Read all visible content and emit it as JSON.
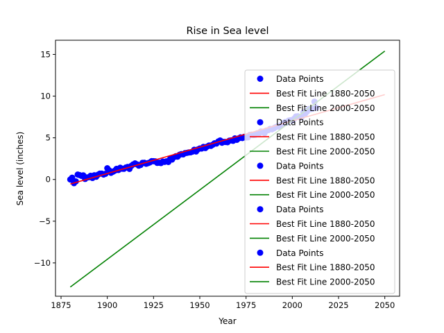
{
  "chart_data": {
    "type": "scatter",
    "title": "Rise in Sea level",
    "xlabel": "Year",
    "ylabel": "Sea level (inches)",
    "xlim": [
      1872,
      2058
    ],
    "ylim": [
      -14.0,
      16.7
    ],
    "xticks": [
      1875,
      1900,
      1925,
      1950,
      1975,
      2000,
      2025,
      2050
    ],
    "yticks": [
      -10,
      -5,
      0,
      5,
      10,
      15
    ],
    "grid": false,
    "legend_position": "right",
    "legend": [
      {
        "label": "Data Points",
        "kind": "marker",
        "color": "#0000ff"
      },
      {
        "label": "Best Fit Line 1880-2050",
        "kind": "line",
        "color": "#ff0000"
      },
      {
        "label": "Best Fit Line 2000-2050",
        "kind": "line",
        "color": "#008000"
      },
      {
        "label": "Data Points",
        "kind": "marker",
        "color": "#0000ff"
      },
      {
        "label": "Best Fit Line 1880-2050",
        "kind": "line",
        "color": "#ff0000"
      },
      {
        "label": "Best Fit Line 2000-2050",
        "kind": "line",
        "color": "#008000"
      },
      {
        "label": "Data Points",
        "kind": "marker",
        "color": "#0000ff"
      },
      {
        "label": "Best Fit Line 1880-2050",
        "kind": "line",
        "color": "#ff0000"
      },
      {
        "label": "Best Fit Line 2000-2050",
        "kind": "line",
        "color": "#008000"
      },
      {
        "label": "Data Points",
        "kind": "marker",
        "color": "#0000ff"
      },
      {
        "label": "Best Fit Line 1880-2050",
        "kind": "line",
        "color": "#ff0000"
      },
      {
        "label": "Best Fit Line 2000-2050",
        "kind": "line",
        "color": "#008000"
      },
      {
        "label": "Data Points",
        "kind": "marker",
        "color": "#0000ff"
      },
      {
        "label": "Best Fit Line 1880-2050",
        "kind": "line",
        "color": "#ff0000"
      },
      {
        "label": "Best Fit Line 2000-2050",
        "kind": "line",
        "color": "#008000"
      }
    ],
    "scatter": {
      "name": "Data Points",
      "color": "#0000ff",
      "x": [
        1880,
        1881,
        1882,
        1883,
        1884,
        1885,
        1886,
        1887,
        1888,
        1889,
        1890,
        1891,
        1892,
        1893,
        1894,
        1895,
        1896,
        1897,
        1898,
        1899,
        1900,
        1901,
        1902,
        1903,
        1904,
        1905,
        1906,
        1907,
        1908,
        1909,
        1910,
        1911,
        1912,
        1913,
        1914,
        1915,
        1916,
        1917,
        1918,
        1919,
        1920,
        1921,
        1922,
        1923,
        1924,
        1925,
        1926,
        1927,
        1928,
        1929,
        1930,
        1931,
        1932,
        1933,
        1934,
        1935,
        1936,
        1937,
        1938,
        1939,
        1940,
        1941,
        1942,
        1943,
        1944,
        1945,
        1946,
        1947,
        1948,
        1949,
        1950,
        1951,
        1952,
        1953,
        1954,
        1955,
        1956,
        1957,
        1958,
        1959,
        1960,
        1961,
        1962,
        1963,
        1964,
        1965,
        1966,
        1967,
        1968,
        1969,
        1970,
        1971,
        1972,
        1973,
        1974,
        1975,
        1976,
        1977,
        1978,
        1979,
        1980,
        1981,
        1982,
        1983,
        1984,
        1985,
        1986,
        1987,
        1988,
        1989,
        1990,
        1991,
        1992,
        1993,
        1994,
        1995,
        1996,
        1997,
        1998,
        1999,
        2000,
        2001,
        2002,
        2003,
        2004,
        2005,
        2006,
        2007,
        2008,
        2009,
        2010,
        2011,
        2012,
        2013
      ],
      "y": [
        0.0,
        0.22,
        -0.44,
        -0.23,
        0.59,
        0.53,
        0.44,
        0.5,
        0.07,
        0.25,
        0.27,
        0.45,
        0.18,
        0.51,
        0.33,
        0.58,
        0.71,
        0.71,
        0.59,
        0.68,
        1.35,
        1.1,
        0.8,
        0.93,
        1.05,
        1.28,
        1.14,
        1.41,
        1.29,
        1.28,
        1.43,
        1.51,
        1.27,
        1.64,
        1.81,
        1.93,
        1.82,
        1.66,
        1.74,
        1.99,
        2.01,
        1.89,
        1.96,
        2.05,
        2.2,
        2.19,
        2.17,
        1.99,
        2.02,
        1.97,
        2.15,
        2.11,
        2.18,
        2.1,
        2.48,
        2.39,
        2.67,
        2.78,
        2.74,
        2.96,
        3.05,
        3.01,
        3.16,
        3.19,
        3.24,
        3.26,
        3.34,
        3.57,
        3.36,
        3.61,
        3.72,
        3.71,
        3.91,
        3.77,
        3.95,
        4.08,
        4.03,
        4.17,
        4.35,
        4.31,
        4.56,
        4.68,
        4.41,
        4.51,
        4.5,
        4.47,
        4.66,
        4.69,
        4.64,
        4.93,
        4.76,
        4.93,
        5.05,
        4.97,
        5.11,
        5.04,
        5.06,
        5.34,
        5.37,
        5.33,
        5.36,
        5.54,
        5.51,
        5.75,
        5.7,
        5.56,
        5.86,
        5.92,
        6.07,
        6.02,
        6.14,
        6.27,
        6.37,
        6.34,
        6.52,
        6.63,
        6.88,
        6.82,
        7.06,
        7.11,
        7.06,
        7.29,
        7.56,
        7.58,
        7.49,
        7.47,
        8.04,
        7.92,
        8.17,
        8.45,
        8.45,
        8.5,
        9.33,
        8.6
      ]
    },
    "series": [
      {
        "name": "Best Fit Line 1880-2050",
        "color": "#ff0000",
        "x": [
          1880,
          2050
        ],
        "y": [
          -0.54,
          10.18
        ]
      },
      {
        "name": "Best Fit Line 2000-2050",
        "color": "#008000",
        "x": [
          1880,
          2050
        ],
        "y": [
          -12.9,
          15.4
        ]
      }
    ]
  }
}
